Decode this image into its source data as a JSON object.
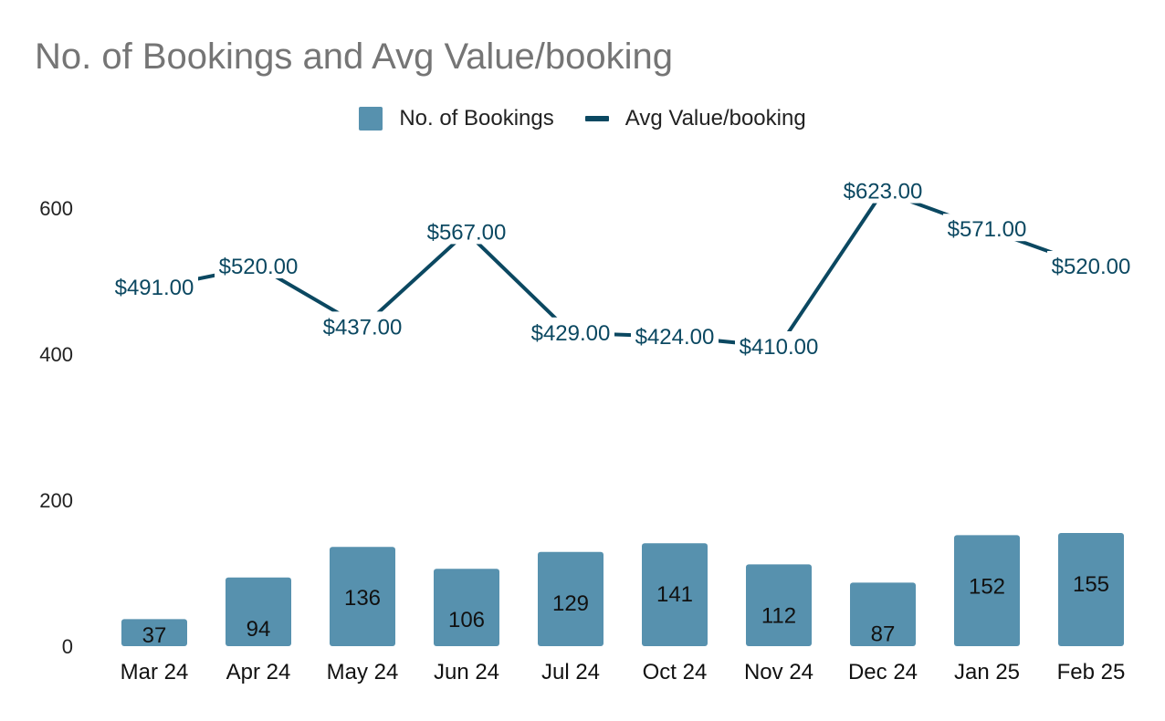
{
  "chart_data": {
    "type": "bar",
    "title": "No. of Bookings and Avg Value/booking",
    "categories": [
      "Mar 24",
      "Apr 24",
      "May 24",
      "Jun 24",
      "Jul 24",
      "Oct 24",
      "Nov 24",
      "Dec 24",
      "Jan 25",
      "Feb 25"
    ],
    "series": [
      {
        "name": "No. of Bookings",
        "type": "bar",
        "color": "#5791ae",
        "values": [
          37,
          94,
          136,
          106,
          129,
          141,
          112,
          87,
          152,
          155
        ],
        "labels": [
          "37",
          "94",
          "136",
          "106",
          "129",
          "141",
          "112",
          "87",
          "152",
          "155"
        ]
      },
      {
        "name": "Avg Value/booking",
        "type": "line",
        "color": "#0b4861",
        "values": [
          491,
          520,
          437,
          567,
          429,
          424,
          410,
          623,
          571,
          520
        ],
        "labels": [
          "$491.00",
          "$520.00",
          "$437.00",
          "$567.00",
          "$429.00",
          "$424.00",
          "$410.00",
          "$623.00",
          "$571.00",
          "$520.00"
        ]
      }
    ],
    "ylim": [
      0,
      600
    ],
    "yticks": [
      "0",
      "200",
      "400",
      "600"
    ],
    "grid": false,
    "legend_position": "top-center"
  }
}
